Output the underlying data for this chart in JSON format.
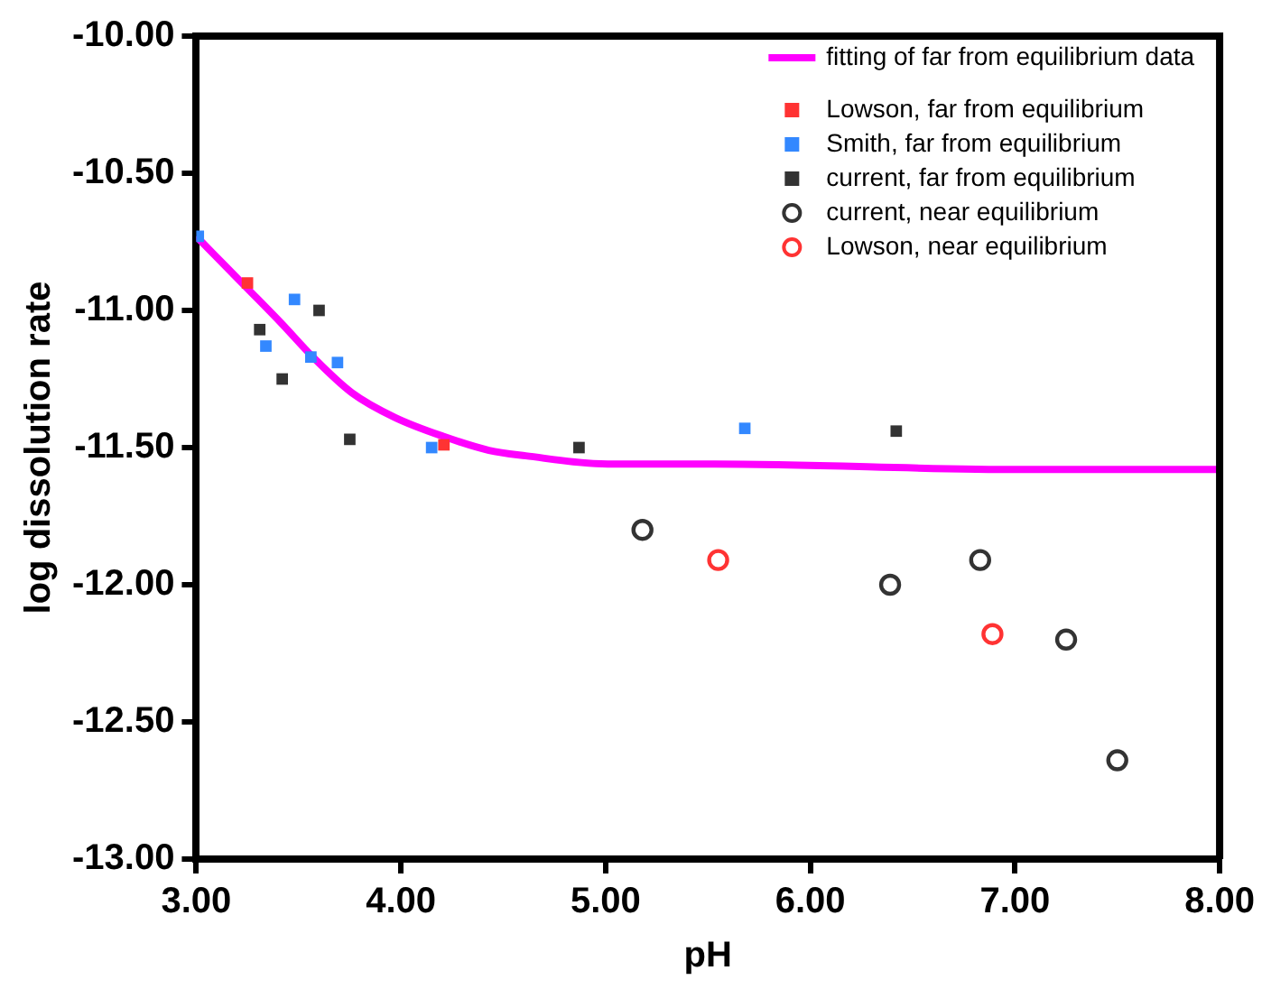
{
  "chart_data": {
    "type": "scatter",
    "xlabel": "pH",
    "ylabel": "log dissolution rate",
    "xlim": [
      3,
      8
    ],
    "ylim": [
      -13,
      -10
    ],
    "xticks": [
      {
        "value": 3,
        "label": "3.00"
      },
      {
        "value": 4,
        "label": "4.00"
      },
      {
        "value": 5,
        "label": "5.00"
      },
      {
        "value": 6,
        "label": "6.00"
      },
      {
        "value": 7,
        "label": "7.00"
      },
      {
        "value": 8,
        "label": "8.00"
      }
    ],
    "yticks": [
      {
        "value": -13,
        "label": "-13.00"
      },
      {
        "value": -12.5,
        "label": "-12.50"
      },
      {
        "value": -12,
        "label": "-12.00"
      },
      {
        "value": -11.5,
        "label": "-11.50"
      },
      {
        "value": -11,
        "label": "-11.00"
      },
      {
        "value": -10.5,
        "label": "-10.50"
      },
      {
        "value": -10,
        "label": "-10.00"
      }
    ],
    "grid": false,
    "legend": "top right",
    "series": [
      {
        "name": "fitting of far from equilibrium data",
        "type": "line",
        "color": "#ff00ff",
        "marker": "none",
        "line_style": "solid",
        "x": [
          3.0,
          3.25,
          3.42,
          3.57,
          3.76,
          3.97,
          4.21,
          4.43,
          4.61,
          5.01,
          5.53,
          7.03,
          8.0
        ],
        "values": [
          -10.73,
          -10.92,
          -11.05,
          -11.17,
          -11.3,
          -11.39,
          -11.46,
          -11.51,
          -11.53,
          -11.56,
          -11.56,
          -11.58,
          -11.58
        ]
      },
      {
        "name": "Lowson, far from equilibrium",
        "color": "#ff3333",
        "marker": "square",
        "x": [
          3.25,
          4.21
        ],
        "values": [
          -10.9,
          -11.49
        ]
      },
      {
        "name": "Smith, far from equilibrium",
        "color": "#3388ff",
        "marker": "square",
        "x": [
          3.01,
          3.48,
          3.34,
          3.56,
          3.69,
          4.15,
          5.68
        ],
        "values": [
          -10.73,
          -10.96,
          -11.13,
          -11.17,
          -11.19,
          -11.5,
          -11.43
        ]
      },
      {
        "name": "current, far from equilibrium",
        "color": "#333333",
        "marker": "square",
        "x": [
          3.6,
          3.31,
          3.42,
          3.75,
          4.87,
          6.42
        ],
        "values": [
          -11.0,
          -11.07,
          -11.25,
          -11.47,
          -11.5,
          -11.44
        ]
      },
      {
        "name": "current, near equilibrium",
        "color": "#333333",
        "marker": "circle",
        "x": [
          5.18,
          6.39,
          6.83,
          7.25,
          7.5
        ],
        "values": [
          -11.8,
          -12.0,
          -11.91,
          -12.2,
          -12.64
        ]
      },
      {
        "name": "Lowson, near equilibrium",
        "color": "#ff3333",
        "marker": "circle",
        "x": [
          5.55,
          6.89
        ],
        "values": [
          -11.91,
          -12.18
        ]
      }
    ]
  }
}
